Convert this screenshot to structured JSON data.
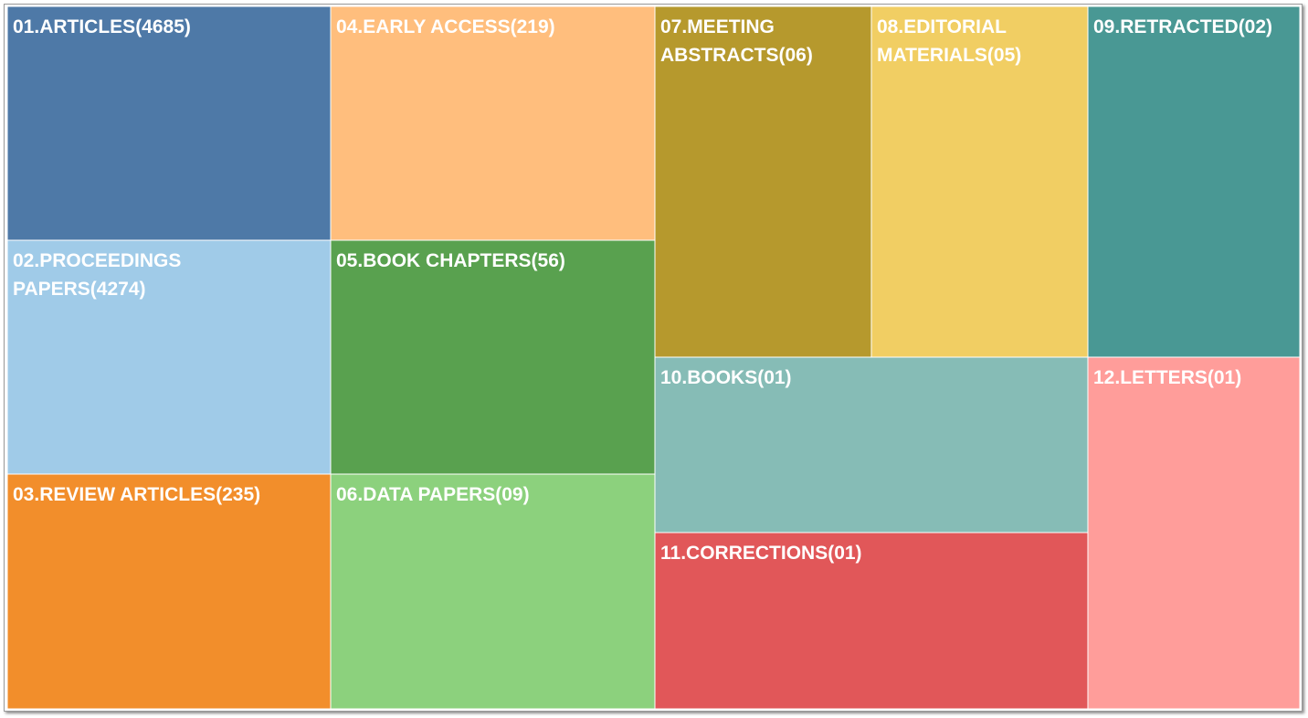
{
  "chart_data": {
    "type": "treemap",
    "items": [
      {
        "label": "01.ARTICLES(4685)",
        "lines": [
          "01.ARTICLES(4685)"
        ],
        "value": 4685,
        "color": "#4e79a7"
      },
      {
        "label": "02.PROCEEDINGS PAPERS(4274)",
        "lines": [
          "02.PROCEEDINGS",
          "PAPERS(4274)"
        ],
        "value": 4274,
        "color": "#a0cbe8"
      },
      {
        "label": "03.REVIEW ARTICLES(235)",
        "lines": [
          "03.REVIEW ARTICLES(235)"
        ],
        "value": 235,
        "color": "#f28e2b"
      },
      {
        "label": "04.EARLY ACCESS(219)",
        "lines": [
          "04.EARLY ACCESS(219)"
        ],
        "value": 219,
        "color": "#ffbe7d"
      },
      {
        "label": "05.BOOK CHAPTERS(56)",
        "lines": [
          "05.BOOK CHAPTERS(56)"
        ],
        "value": 56,
        "color": "#59a14f"
      },
      {
        "label": "06.DATA PAPERS(09)",
        "lines": [
          "06.DATA PAPERS(09)"
        ],
        "value": 9,
        "color": "#8cd17d"
      },
      {
        "label": "07.MEETING ABSTRACTS(06)",
        "lines": [
          "07.MEETING",
          "ABSTRACTS(06)"
        ],
        "value": 6,
        "color": "#b6992d"
      },
      {
        "label": "08.EDITORIAL MATERIALS(05)",
        "lines": [
          "08.EDITORIAL",
          "MATERIALS(05)"
        ],
        "value": 5,
        "color": "#f1ce63"
      },
      {
        "label": "09.RETRACTED(02)",
        "lines": [
          "09.RETRACTED(02)"
        ],
        "value": 2,
        "color": "#499894"
      },
      {
        "label": "10.BOOKS(01)",
        "lines": [
          "10.BOOKS(01)"
        ],
        "value": 1,
        "color": "#86bcb6"
      },
      {
        "label": "11.CORRECTIONS(01)",
        "lines": [
          "11.CORRECTIONS(01)"
        ],
        "value": 1,
        "color": "#e15759"
      },
      {
        "label": "12.LETTERS(01)",
        "lines": [
          "12.LETTERS(01)"
        ],
        "value": 1,
        "color": "#ff9d9a"
      }
    ]
  }
}
